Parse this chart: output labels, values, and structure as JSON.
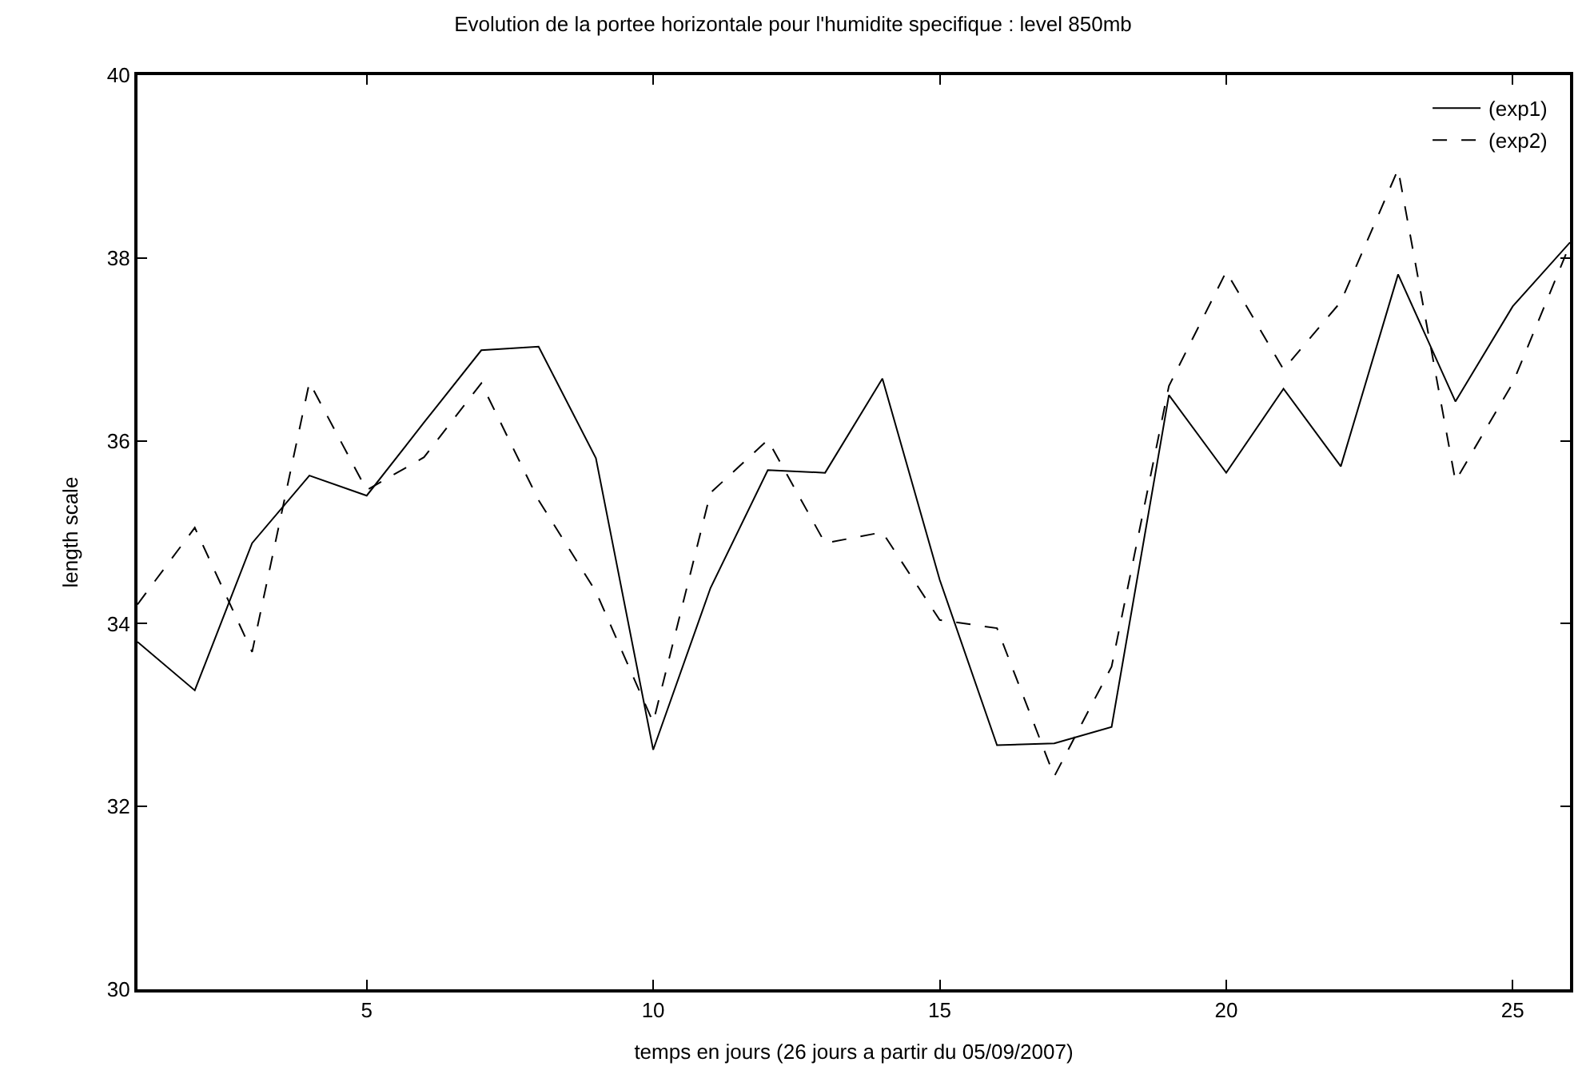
{
  "chart_data": {
    "type": "line",
    "title": "Evolution de la portee horizontale pour l'humidite specifique : level 850mb",
    "xlabel": "temps en jours (26 jours a partir du 05/09/2007)",
    "ylabel": "length scale",
    "x": [
      1,
      2,
      3,
      4,
      5,
      6,
      7,
      8,
      9,
      10,
      11,
      12,
      13,
      14,
      15,
      16,
      17,
      18,
      19,
      20,
      21,
      22,
      23,
      24,
      25,
      26
    ],
    "series": [
      {
        "name": "(exp1)",
        "color": "#000000",
        "line_style": "solid",
        "values": [
          33.8,
          33.27,
          34.88,
          35.62,
          35.4,
          36.2,
          36.99,
          37.03,
          35.81,
          32.62,
          34.39,
          35.68,
          35.65,
          36.68,
          34.48,
          32.67,
          32.69,
          32.87,
          36.5,
          35.65,
          36.57,
          35.72,
          37.82,
          36.43,
          37.47,
          38.17
        ]
      },
      {
        "name": "(exp2)",
        "color": "#000000",
        "line_style": "dashed",
        "values": [
          34.21,
          35.05,
          33.69,
          36.64,
          35.46,
          35.82,
          36.63,
          35.35,
          34.35,
          32.92,
          35.43,
          36.01,
          34.88,
          35.0,
          34.04,
          33.95,
          32.33,
          33.53,
          36.6,
          37.85,
          36.78,
          37.52,
          38.97,
          35.56,
          36.63,
          38.15
        ]
      }
    ],
    "xlim": [
      1,
      26
    ],
    "xticks": [
      5,
      10,
      15,
      20,
      25
    ],
    "ylim": [
      30,
      40
    ],
    "yticks": [
      30,
      32,
      34,
      36,
      38,
      40
    ],
    "legend": "top right",
    "marker": "none"
  }
}
